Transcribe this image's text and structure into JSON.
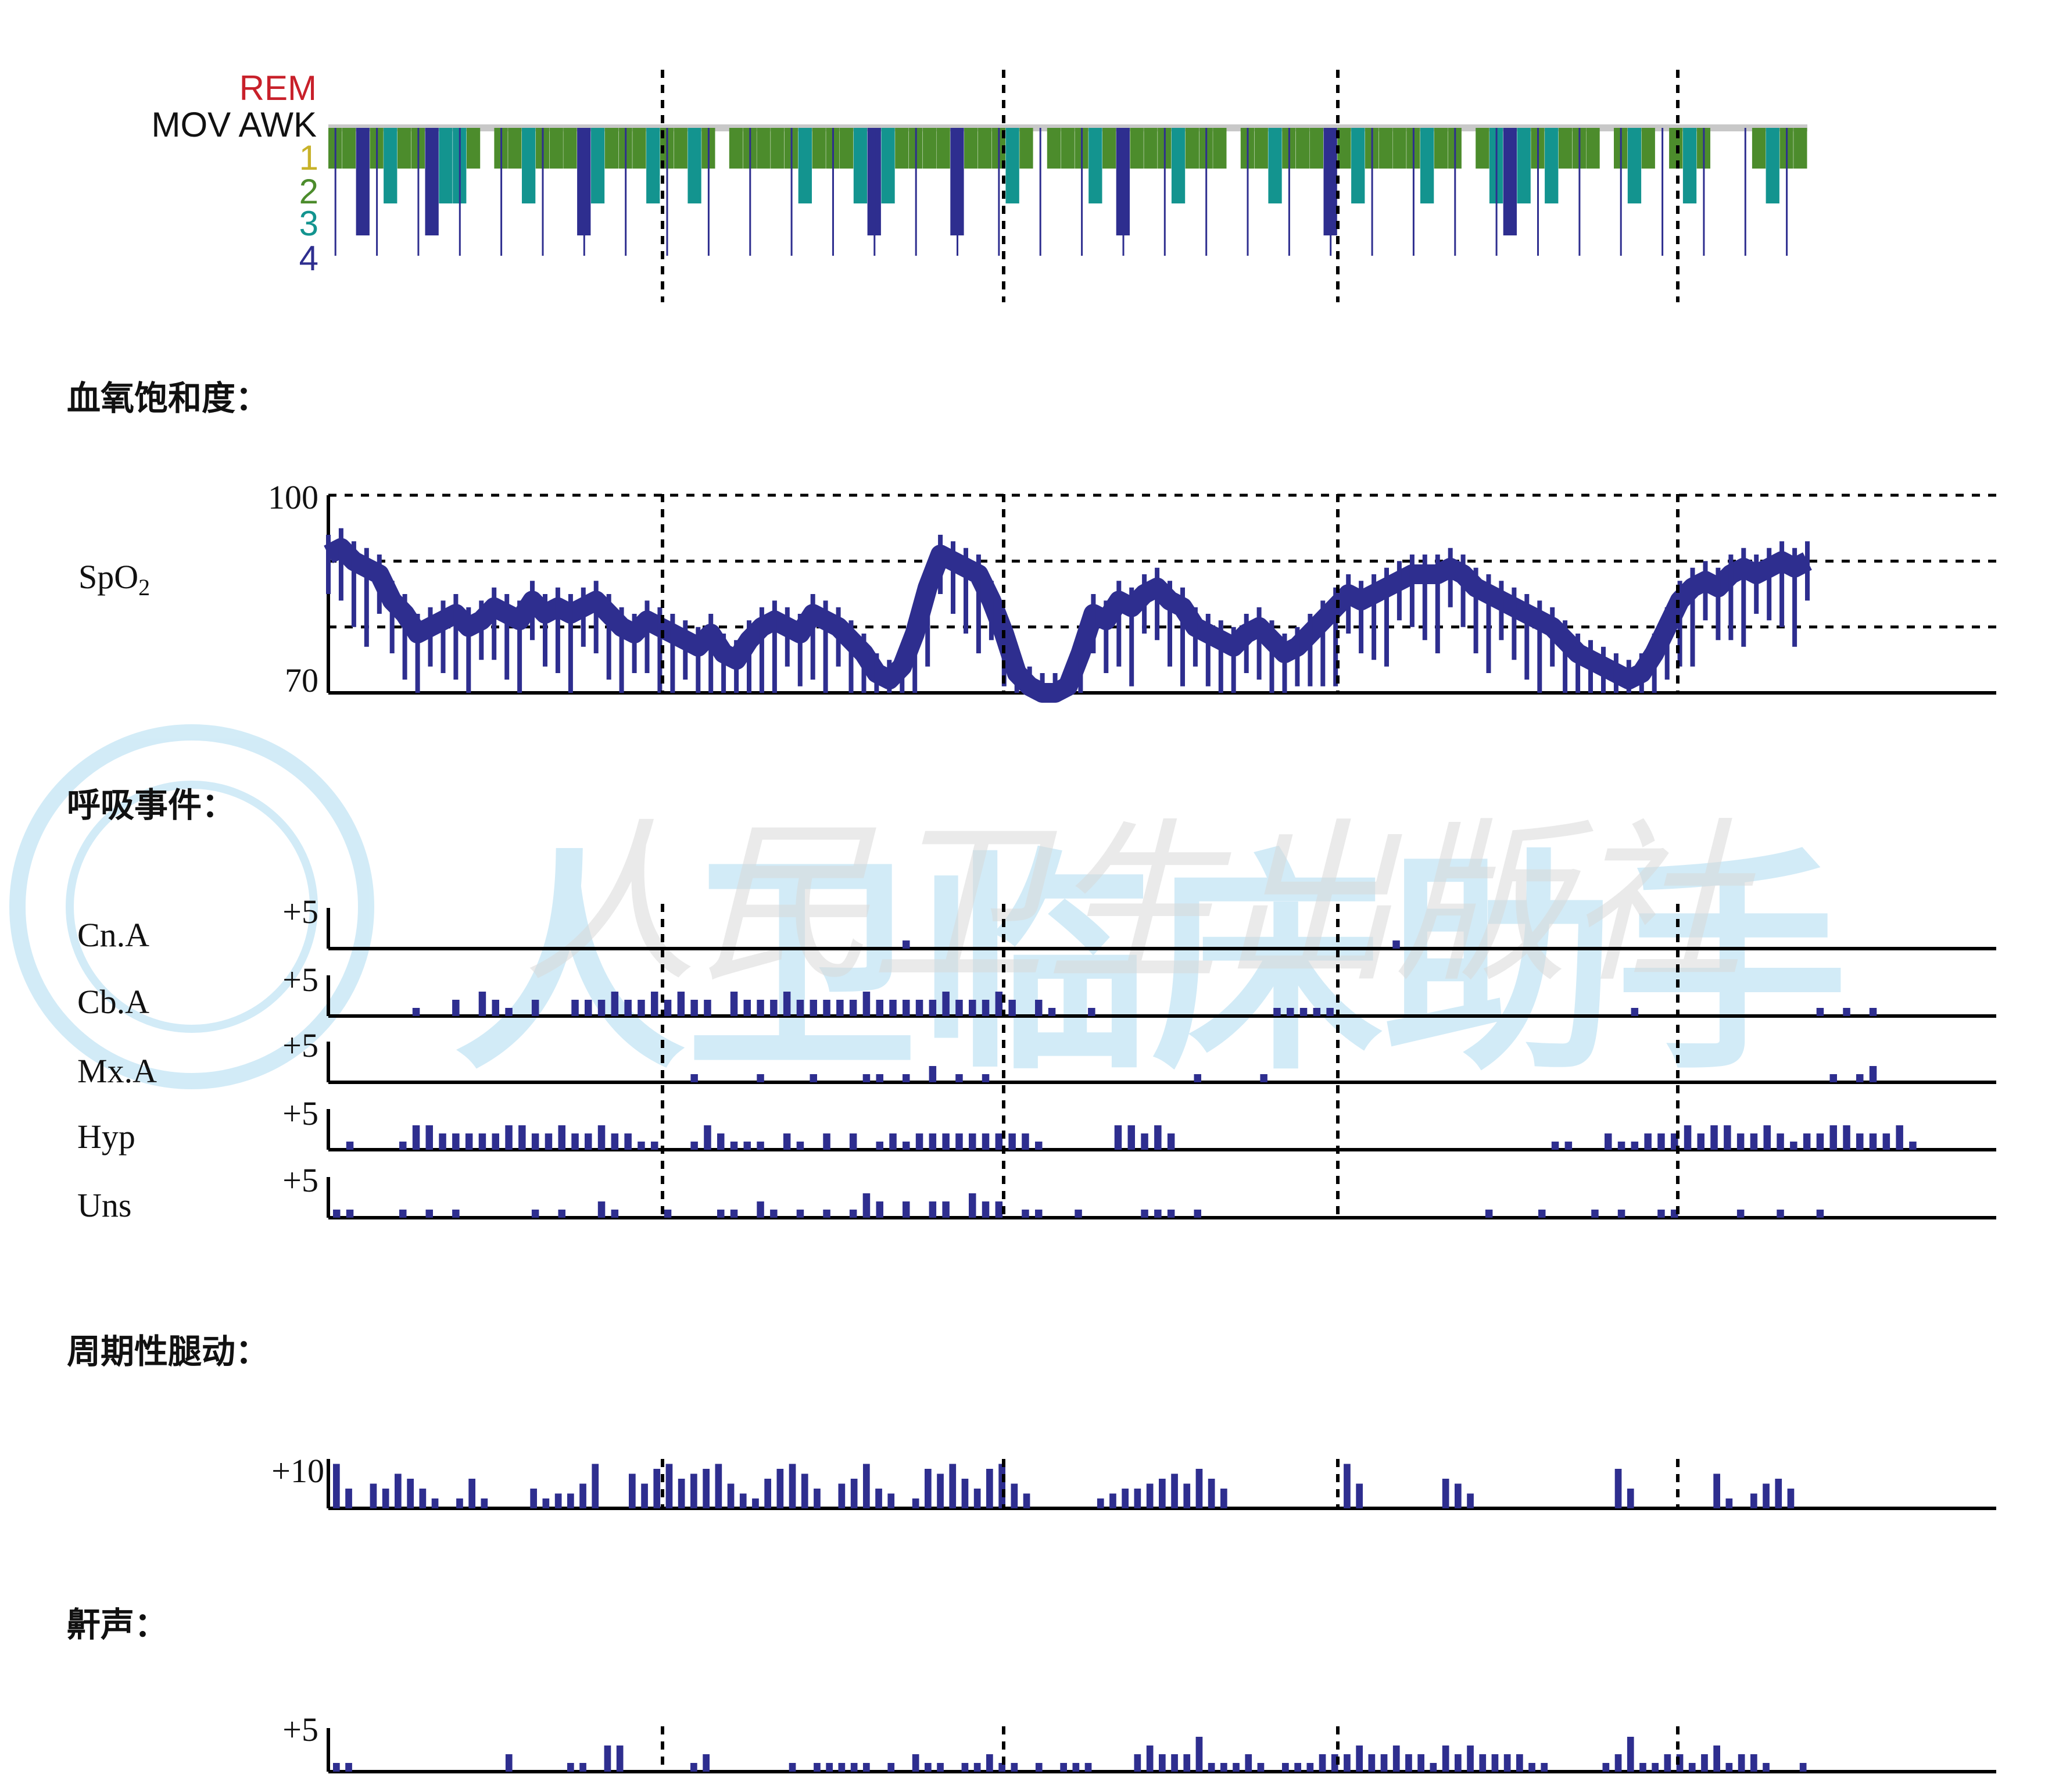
{
  "colors": {
    "trace": "#2e2e8f",
    "axis": "#000000",
    "rem": "#c8202a",
    "stage_awk": "#c8c8c8",
    "stage_1": "#e8d81e",
    "stage_2": "#4c8c2c",
    "stage_3": "#13948f",
    "stage_4": "#2e2e8f",
    "watermark": "#35a8dc"
  },
  "chart_data": [
    {
      "type": "step",
      "panel": "hypnogram",
      "stage_labels": [
        "REM",
        "MOV AWK",
        "1",
        "2",
        "3",
        "4"
      ],
      "stages_sequence": [
        2,
        2,
        4,
        2,
        3,
        2,
        2,
        4,
        3,
        3,
        2,
        1,
        2,
        2,
        3,
        2,
        2,
        2,
        4,
        3,
        2,
        2,
        2,
        3,
        2,
        2,
        3,
        2,
        1,
        2,
        2,
        2,
        2,
        2,
        3,
        2,
        2,
        2,
        3,
        4,
        3,
        2,
        2,
        2,
        2,
        4,
        2,
        2,
        2,
        3,
        2,
        1,
        2,
        2,
        2,
        3,
        2,
        4,
        2,
        2,
        2,
        3,
        2,
        2,
        2,
        1,
        2,
        2,
        3,
        2,
        2,
        2,
        4,
        2,
        3,
        2,
        2,
        2,
        2,
        3,
        2,
        2,
        1,
        2,
        3,
        4,
        3,
        2,
        3,
        2,
        2,
        2,
        1,
        2,
        3,
        2,
        1,
        2,
        3,
        2,
        1,
        1,
        1,
        2,
        3,
        2,
        2
      ]
    },
    {
      "type": "line",
      "panel": "spo2",
      "ylim": [
        70,
        100
      ],
      "yticks": [
        100,
        70
      ],
      "gridlines": [
        100,
        90,
        80
      ],
      "values": [
        91,
        92,
        90,
        89,
        88,
        84,
        82,
        79,
        80,
        81,
        82,
        80,
        81,
        83,
        82,
        81,
        84,
        82,
        83,
        82,
        83,
        84,
        82,
        80,
        79,
        81,
        80,
        79,
        78,
        77,
        79,
        76,
        75,
        78,
        80,
        81,
        80,
        79,
        82,
        81,
        80,
        78,
        76,
        73,
        72,
        74,
        79,
        86,
        91,
        90,
        89,
        88,
        84,
        79,
        73,
        71,
        70,
        70,
        71,
        76,
        82,
        81,
        84,
        83,
        85,
        86,
        84,
        83,
        80,
        79,
        78,
        77,
        79,
        80,
        78,
        76,
        77,
        79,
        81,
        83,
        85,
        84,
        85,
        86,
        87,
        88,
        88,
        88,
        89,
        88,
        86,
        85,
        84,
        83,
        82,
        81,
        80,
        78,
        76,
        75,
        74,
        73,
        72,
        73,
        76,
        80,
        84,
        86,
        87,
        86,
        88,
        89,
        88,
        89,
        90,
        89,
        90
      ]
    },
    {
      "type": "bar",
      "panel": "respiratory_events",
      "ymax_label": "+5",
      "series": [
        {
          "name": "Cn.A",
          "values": [
            0,
            0,
            0,
            0,
            0,
            0,
            0,
            0,
            0,
            0,
            0,
            0,
            0,
            0,
            0,
            0,
            0,
            0,
            0,
            0,
            0,
            0,
            0,
            0,
            0,
            0,
            0,
            0,
            0,
            0,
            0,
            0,
            0,
            0,
            0,
            0,
            0,
            0,
            0,
            0,
            0,
            0,
            0,
            1,
            0,
            0,
            0,
            0,
            0,
            0,
            0,
            0,
            0,
            0,
            0,
            0,
            0,
            0,
            0,
            0,
            0,
            0,
            0,
            0,
            0,
            0,
            0,
            0,
            0,
            0,
            0,
            0,
            0,
            0,
            0,
            0,
            0,
            0,
            0,
            0,
            1,
            0,
            0,
            0,
            0,
            0,
            0,
            0,
            0,
            0,
            0,
            0,
            0,
            0,
            0,
            0,
            0,
            0,
            0,
            0,
            0,
            0,
            0,
            0,
            0,
            0,
            0,
            0,
            0,
            0,
            0,
            0,
            0,
            0,
            0,
            0,
            0,
            0,
            0,
            0
          ]
        },
        {
          "name": "Cb.A",
          "values": [
            0,
            0,
            0,
            0,
            0,
            0,
            1,
            0,
            0,
            2,
            0,
            3,
            2,
            1,
            0,
            2,
            0,
            0,
            2,
            2,
            2,
            3,
            2,
            2,
            3,
            2,
            3,
            2,
            2,
            0,
            3,
            2,
            2,
            2,
            3,
            2,
            2,
            2,
            2,
            2,
            3,
            2,
            2,
            2,
            2,
            2,
            3,
            2,
            2,
            2,
            3,
            2,
            0,
            2,
            1,
            0,
            0,
            1,
            0,
            0,
            0,
            0,
            0,
            0,
            0,
            0,
            0,
            0,
            0,
            0,
            0,
            1,
            1,
            1,
            1,
            1,
            0,
            0,
            0,
            0,
            0,
            0,
            0,
            0,
            0,
            0,
            0,
            0,
            0,
            0,
            0,
            0,
            0,
            0,
            0,
            0,
            0,
            0,
            1,
            0,
            0,
            0,
            0,
            0,
            0,
            0,
            0,
            0,
            0,
            0,
            0,
            0,
            1,
            0,
            1,
            0,
            1,
            0,
            0,
            0
          ]
        },
        {
          "name": "Mx.A",
          "values": [
            0,
            0,
            0,
            0,
            0,
            0,
            0,
            0,
            0,
            0,
            0,
            0,
            0,
            0,
            0,
            0,
            0,
            0,
            0,
            0,
            0,
            0,
            0,
            0,
            0,
            0,
            0,
            1,
            0,
            0,
            0,
            0,
            1,
            0,
            0,
            0,
            1,
            0,
            0,
            0,
            1,
            1,
            0,
            1,
            0,
            2,
            0,
            1,
            0,
            1,
            0,
            0,
            0,
            0,
            0,
            0,
            0,
            0,
            0,
            0,
            0,
            0,
            0,
            0,
            0,
            1,
            0,
            0,
            0,
            0,
            1,
            0,
            0,
            0,
            0,
            0,
            0,
            0,
            0,
            0,
            0,
            0,
            0,
            0,
            0,
            0,
            0,
            0,
            0,
            0,
            0,
            0,
            0,
            0,
            0,
            0,
            0,
            0,
            0,
            0,
            0,
            0,
            0,
            0,
            0,
            0,
            0,
            0,
            0,
            0,
            0,
            0,
            0,
            1,
            0,
            1,
            2,
            0,
            0,
            0
          ]
        },
        {
          "name": "Hyp",
          "values": [
            0,
            1,
            0,
            0,
            0,
            1,
            3,
            3,
            2,
            2,
            2,
            2,
            2,
            3,
            3,
            2,
            2,
            3,
            2,
            2,
            3,
            2,
            2,
            1,
            1,
            0,
            0,
            1,
            3,
            2,
            1,
            1,
            1,
            0,
            2,
            1,
            0,
            2,
            0,
            2,
            0,
            1,
            2,
            1,
            2,
            2,
            2,
            2,
            2,
            2,
            2,
            2,
            2,
            1,
            0,
            0,
            0,
            0,
            0,
            3,
            3,
            2,
            3,
            2,
            0,
            0,
            0,
            0,
            0,
            0,
            0,
            0,
            0,
            0,
            0,
            0,
            0,
            0,
            0,
            0,
            0,
            0,
            0,
            0,
            0,
            0,
            0,
            0,
            0,
            0,
            0,
            0,
            1,
            1,
            0,
            0,
            2,
            1,
            1,
            2,
            2,
            2,
            3,
            2,
            3,
            3,
            2,
            2,
            3,
            2,
            1,
            2,
            2,
            3,
            3,
            2,
            2,
            2,
            3,
            1
          ]
        },
        {
          "name": "Uns",
          "values": [
            1,
            1,
            0,
            0,
            0,
            1,
            0,
            1,
            0,
            1,
            0,
            0,
            0,
            0,
            0,
            1,
            0,
            1,
            0,
            0,
            2,
            1,
            0,
            0,
            0,
            1,
            0,
            0,
            0,
            1,
            1,
            0,
            2,
            1,
            0,
            1,
            0,
            1,
            0,
            1,
            3,
            2,
            0,
            2,
            0,
            2,
            2,
            0,
            3,
            2,
            2,
            0,
            1,
            1,
            0,
            0,
            1,
            0,
            0,
            0,
            0,
            1,
            1,
            1,
            0,
            1,
            0,
            0,
            0,
            0,
            0,
            0,
            0,
            0,
            0,
            0,
            0,
            0,
            0,
            0,
            0,
            0,
            0,
            0,
            0,
            0,
            0,
            1,
            0,
            0,
            0,
            1,
            0,
            0,
            0,
            1,
            0,
            1,
            0,
            0,
            1,
            1,
            0,
            0,
            0,
            0,
            1,
            0,
            0,
            1,
            0,
            0,
            1,
            0,
            0,
            0,
            0,
            0,
            0,
            0
          ]
        }
      ]
    },
    {
      "type": "bar",
      "panel": "periodic_limb_movements",
      "ymax_label": "+10",
      "values": [
        9,
        4,
        0,
        5,
        4,
        7,
        6,
        4,
        2,
        0,
        2,
        6,
        2,
        0,
        0,
        0,
        4,
        2,
        3,
        3,
        5,
        9,
        0,
        0,
        7,
        5,
        8,
        9,
        6,
        7,
        8,
        9,
        5,
        3,
        2,
        6,
        8,
        9,
        7,
        4,
        0,
        5,
        6,
        9,
        4,
        3,
        0,
        2,
        8,
        7,
        9,
        6,
        4,
        8,
        9,
        5,
        3,
        0,
        0,
        0,
        0,
        0,
        2,
        3,
        4,
        4,
        5,
        6,
        7,
        5,
        8,
        6,
        4,
        0,
        0,
        0,
        0,
        0,
        0,
        0,
        0,
        0,
        9,
        5,
        0,
        0,
        0,
        0,
        0,
        0,
        6,
        5,
        3,
        0,
        0,
        0,
        0,
        0,
        0,
        0,
        0,
        0,
        0,
        0,
        8,
        4,
        0,
        0,
        0,
        0,
        0,
        0,
        7,
        2,
        0,
        3,
        5,
        6,
        4,
        0
      ]
    },
    {
      "type": "bar",
      "panel": "snoring",
      "ymax_label": "+5",
      "values": [
        1,
        1,
        0,
        0,
        0,
        0,
        0,
        0,
        0,
        0,
        0,
        0,
        0,
        0,
        2,
        0,
        0,
        0,
        0,
        1,
        1,
        0,
        3,
        3,
        0,
        0,
        0,
        0,
        0,
        1,
        2,
        0,
        0,
        0,
        0,
        0,
        0,
        1,
        0,
        1,
        1,
        1,
        1,
        1,
        0,
        1,
        0,
        2,
        1,
        1,
        0,
        1,
        1,
        2,
        1,
        1,
        0,
        1,
        0,
        1,
        1,
        1,
        0,
        0,
        0,
        2,
        3,
        2,
        2,
        2,
        4,
        1,
        1,
        1,
        2,
        1,
        0,
        1,
        1,
        1,
        2,
        2,
        2,
        3,
        2,
        2,
        3,
        2,
        2,
        1,
        3,
        2,
        3,
        2,
        2,
        2,
        2,
        1,
        1,
        0,
        0,
        0,
        0,
        1,
        2,
        4,
        1,
        1,
        2,
        2,
        1,
        2,
        3,
        1,
        2,
        2,
        1,
        0,
        0,
        1
      ]
    }
  ],
  "labels": {
    "hypnogram": {
      "rem": "REM",
      "mov_awk": "MOV AWK",
      "s1": "1",
      "s2": "2",
      "s3": "3",
      "s4": "4"
    },
    "spo2": {
      "section_title": "血氧饱和度：",
      "channel": "SpO",
      "channel_sub": "2",
      "ymax": "100",
      "ymin": "70"
    },
    "respiratory": {
      "section_title": "呼吸事件：",
      "ymax": "+5",
      "names": [
        "Cn.A",
        "Cb.A",
        "Mx.A",
        "Hyp",
        "Uns"
      ]
    },
    "plm": {
      "section_title": "周期性腿动：",
      "ymax": "+10"
    },
    "snore": {
      "section_title": "鼾声：",
      "ymax": "+5"
    }
  },
  "watermark": {
    "text": "人民卫生出版社",
    "text2": "人卫临床助手"
  }
}
